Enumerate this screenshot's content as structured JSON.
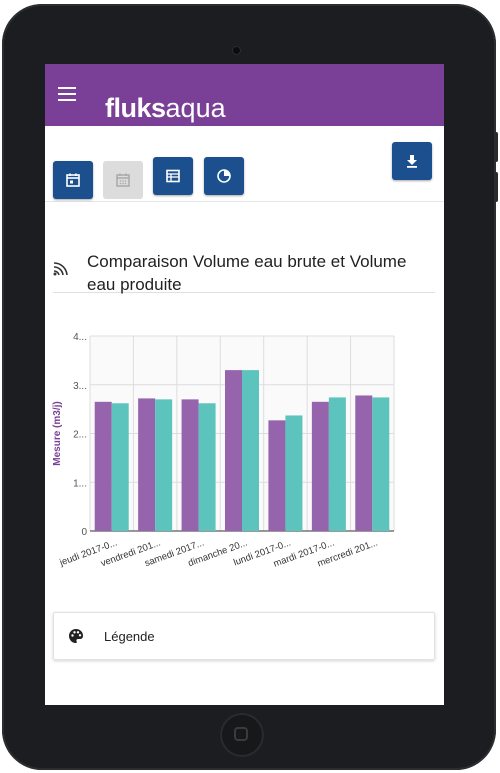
{
  "app": {
    "brand_bold": "fluks",
    "brand_light": "aqua"
  },
  "colors": {
    "header": "#7a3f96",
    "button": "#1c4f8e",
    "series1": "#9663ad",
    "series2": "#5cc4bc"
  },
  "toolbar": {
    "buttons": [
      {
        "icon": "calendar-day-icon",
        "state": "active"
      },
      {
        "icon": "calendar-icon",
        "state": "disabled"
      },
      {
        "icon": "table-icon",
        "state": "active"
      },
      {
        "icon": "pie-chart-icon",
        "state": "active"
      }
    ],
    "download_icon": "download-icon"
  },
  "card": {
    "icon": "signal-icon",
    "title": "Comparaison Volume eau brute et Volume eau produite"
  },
  "legend": {
    "icon": "palette-icon",
    "label": "Légende"
  },
  "chart_data": {
    "type": "bar",
    "ylabel": "Mesure (m3/j)",
    "ylim": [
      0,
      4
    ],
    "yticks": [
      "0",
      "1...",
      "2...",
      "3...",
      "4..."
    ],
    "categories": [
      "jeudi 2017-0...",
      "vendredi 201...",
      "samedi 2017...",
      "dimanche 20...",
      "lundi 2017-0...",
      "mardi 2017-0...",
      "mercredi 201..."
    ],
    "series": [
      {
        "values": [
          2.65,
          2.72,
          2.7,
          3.3,
          2.27,
          2.65,
          2.78
        ]
      },
      {
        "values": [
          2.62,
          2.7,
          2.62,
          3.3,
          2.37,
          2.74,
          2.74
        ]
      }
    ],
    "grid": true
  }
}
